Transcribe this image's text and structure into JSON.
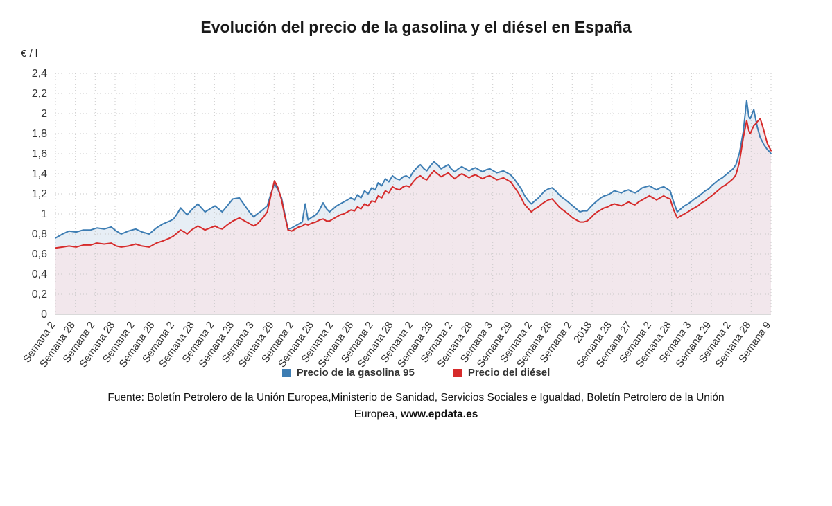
{
  "title": "Evolución del precio de la gasolina y el diésel en España",
  "footer": {
    "line1": "Fuente: Boletín Petrolero de la Unión Europea,Ministerio de Sanidad, Servicios Sociales e Igualdad, Boletín Petrolero de la Unión",
    "line2": "Europea, ",
    "link": "www.epdata.es"
  },
  "chart_data": {
    "type": "area",
    "title": "Evolución del precio de la gasolina y el diésel en España",
    "xlabel": "",
    "ylabel": "€ / l",
    "ylim": [
      0,
      2.4
    ],
    "grid": true,
    "legend_position": "bottom",
    "y_ticks": [
      "0",
      "0,2",
      "0,4",
      "0,6",
      "0,8",
      "1",
      "1,2",
      "1,4",
      "1,6",
      "1,8",
      "2",
      "2,2",
      "2,4"
    ],
    "y_tick_values": [
      0,
      0.2,
      0.4,
      0.6,
      0.8,
      1.0,
      1.2,
      1.4,
      1.6,
      1.8,
      2.0,
      2.2,
      2.4
    ],
    "x_tick_labels": [
      "Semana 2",
      "Semana 28",
      "Semana 2",
      "Semana 28",
      "Semana 2",
      "Semana 28",
      "Semana 2",
      "Semana 28",
      "Semana 2",
      "Semana 28",
      "Semana 3",
      "Semana 29",
      "Semana 2",
      "Semana 28",
      "Semana 2",
      "Semana 28",
      "Semana 2",
      "Semana 28",
      "Semana 2",
      "Semana 28",
      "Semana 2",
      "Semana 28",
      "Semana 3",
      "Semana 29",
      "Semana 2",
      "Semana 28",
      "Semana 2",
      "2018",
      "Semana 28",
      "Semana 27",
      "Semana 2",
      "Semana 28",
      "Semana 3",
      "Semana 29",
      "Semana 2",
      "Semana 28",
      "Semana 9"
    ],
    "x": [
      0.0,
      0.01,
      0.019,
      0.029,
      0.039,
      0.049,
      0.058,
      0.068,
      0.078,
      0.085,
      0.092,
      0.102,
      0.112,
      0.121,
      0.131,
      0.141,
      0.15,
      0.16,
      0.165,
      0.17,
      0.175,
      0.18,
      0.184,
      0.19,
      0.199,
      0.204,
      0.209,
      0.216,
      0.223,
      0.228,
      0.233,
      0.24,
      0.248,
      0.257,
      0.262,
      0.267,
      0.272,
      0.277,
      0.282,
      0.286,
      0.291,
      0.296,
      0.301,
      0.306,
      0.311,
      0.316,
      0.32,
      0.325,
      0.33,
      0.335,
      0.34,
      0.345,
      0.349,
      0.353,
      0.359,
      0.364,
      0.369,
      0.374,
      0.379,
      0.383,
      0.388,
      0.393,
      0.398,
      0.403,
      0.408,
      0.413,
      0.418,
      0.422,
      0.427,
      0.432,
      0.437,
      0.442,
      0.447,
      0.451,
      0.456,
      0.461,
      0.466,
      0.471,
      0.476,
      0.481,
      0.486,
      0.49,
      0.495,
      0.5,
      0.505,
      0.51,
      0.515,
      0.519,
      0.524,
      0.529,
      0.534,
      0.539,
      0.544,
      0.549,
      0.553,
      0.558,
      0.563,
      0.568,
      0.573,
      0.578,
      0.583,
      0.587,
      0.592,
      0.597,
      0.602,
      0.607,
      0.612,
      0.617,
      0.622,
      0.626,
      0.631,
      0.636,
      0.641,
      0.646,
      0.651,
      0.655,
      0.66,
      0.665,
      0.67,
      0.675,
      0.68,
      0.684,
      0.689,
      0.694,
      0.699,
      0.704,
      0.709,
      0.713,
      0.718,
      0.723,
      0.728,
      0.733,
      0.738,
      0.743,
      0.748,
      0.752,
      0.757,
      0.762,
      0.767,
      0.772,
      0.777,
      0.781,
      0.786,
      0.791,
      0.796,
      0.801,
      0.806,
      0.81,
      0.815,
      0.82,
      0.825,
      0.83,
      0.835,
      0.84,
      0.845,
      0.85,
      0.855,
      0.859,
      0.864,
      0.869,
      0.874,
      0.879,
      0.884,
      0.888,
      0.893,
      0.898,
      0.903,
      0.908,
      0.913,
      0.917,
      0.922,
      0.927,
      0.932,
      0.937,
      0.942,
      0.947,
      0.951,
      0.956,
      0.961,
      0.966,
      0.969,
      0.971,
      0.976,
      0.979,
      0.981,
      0.985,
      0.988,
      0.99,
      0.993,
      0.995,
      0.998,
      1.0
    ],
    "series": [
      {
        "id": "gasolina95",
        "name": "Precio de la gasolina 95",
        "color": "#3d7db3",
        "fill": "#e7eef5",
        "values": [
          0.76,
          0.8,
          0.83,
          0.82,
          0.84,
          0.84,
          0.86,
          0.85,
          0.87,
          0.83,
          0.8,
          0.83,
          0.85,
          0.82,
          0.8,
          0.86,
          0.9,
          0.93,
          0.95,
          1.0,
          1.06,
          1.02,
          0.99,
          1.04,
          1.1,
          1.06,
          1.02,
          1.05,
          1.08,
          1.05,
          1.02,
          1.08,
          1.15,
          1.16,
          1.11,
          1.06,
          1.01,
          0.97,
          1.0,
          1.02,
          1.05,
          1.08,
          1.2,
          1.3,
          1.24,
          1.16,
          1.02,
          0.85,
          0.86,
          0.88,
          0.9,
          0.92,
          1.1,
          0.94,
          0.97,
          0.99,
          1.04,
          1.11,
          1.05,
          1.02,
          1.05,
          1.08,
          1.1,
          1.12,
          1.14,
          1.16,
          1.14,
          1.19,
          1.16,
          1.23,
          1.2,
          1.26,
          1.24,
          1.31,
          1.28,
          1.35,
          1.32,
          1.38,
          1.35,
          1.34,
          1.37,
          1.38,
          1.36,
          1.42,
          1.46,
          1.49,
          1.45,
          1.43,
          1.48,
          1.52,
          1.49,
          1.45,
          1.47,
          1.49,
          1.45,
          1.42,
          1.45,
          1.47,
          1.45,
          1.43,
          1.45,
          1.46,
          1.44,
          1.42,
          1.44,
          1.45,
          1.43,
          1.41,
          1.42,
          1.43,
          1.41,
          1.39,
          1.35,
          1.3,
          1.25,
          1.19,
          1.14,
          1.1,
          1.13,
          1.16,
          1.2,
          1.23,
          1.25,
          1.26,
          1.23,
          1.19,
          1.16,
          1.14,
          1.11,
          1.08,
          1.05,
          1.02,
          1.03,
          1.03,
          1.07,
          1.1,
          1.13,
          1.16,
          1.18,
          1.19,
          1.21,
          1.23,
          1.22,
          1.21,
          1.23,
          1.24,
          1.22,
          1.21,
          1.23,
          1.26,
          1.27,
          1.28,
          1.26,
          1.24,
          1.26,
          1.27,
          1.25,
          1.23,
          1.12,
          1.02,
          1.05,
          1.08,
          1.1,
          1.12,
          1.15,
          1.17,
          1.2,
          1.23,
          1.25,
          1.28,
          1.31,
          1.34,
          1.36,
          1.39,
          1.42,
          1.45,
          1.49,
          1.61,
          1.81,
          2.13,
          1.97,
          1.95,
          2.04,
          1.93,
          1.86,
          1.76,
          1.72,
          1.69,
          1.66,
          1.64,
          1.62,
          1.6
        ]
      },
      {
        "id": "diesel",
        "name": "Precio del diésel",
        "color": "#d62b2b",
        "fill": "#f2e7ec",
        "values": [
          0.66,
          0.67,
          0.68,
          0.67,
          0.69,
          0.69,
          0.71,
          0.7,
          0.71,
          0.68,
          0.67,
          0.68,
          0.7,
          0.68,
          0.67,
          0.71,
          0.73,
          0.76,
          0.78,
          0.81,
          0.84,
          0.82,
          0.8,
          0.84,
          0.88,
          0.86,
          0.84,
          0.86,
          0.88,
          0.86,
          0.85,
          0.89,
          0.93,
          0.96,
          0.94,
          0.92,
          0.9,
          0.88,
          0.9,
          0.93,
          0.97,
          1.02,
          1.18,
          1.33,
          1.26,
          1.14,
          1.0,
          0.84,
          0.83,
          0.85,
          0.87,
          0.88,
          0.9,
          0.89,
          0.91,
          0.92,
          0.94,
          0.95,
          0.93,
          0.93,
          0.95,
          0.97,
          0.99,
          1.0,
          1.02,
          1.04,
          1.03,
          1.07,
          1.05,
          1.1,
          1.08,
          1.13,
          1.12,
          1.18,
          1.16,
          1.23,
          1.21,
          1.27,
          1.25,
          1.24,
          1.27,
          1.28,
          1.27,
          1.32,
          1.36,
          1.38,
          1.35,
          1.34,
          1.39,
          1.43,
          1.4,
          1.37,
          1.39,
          1.41,
          1.38,
          1.35,
          1.38,
          1.4,
          1.38,
          1.36,
          1.38,
          1.39,
          1.37,
          1.35,
          1.37,
          1.38,
          1.36,
          1.34,
          1.35,
          1.36,
          1.34,
          1.32,
          1.27,
          1.22,
          1.16,
          1.1,
          1.06,
          1.02,
          1.05,
          1.07,
          1.1,
          1.12,
          1.14,
          1.15,
          1.11,
          1.07,
          1.04,
          1.02,
          0.99,
          0.96,
          0.94,
          0.92,
          0.92,
          0.93,
          0.96,
          0.99,
          1.02,
          1.04,
          1.06,
          1.07,
          1.09,
          1.1,
          1.09,
          1.08,
          1.1,
          1.12,
          1.1,
          1.09,
          1.12,
          1.14,
          1.16,
          1.18,
          1.16,
          1.14,
          1.16,
          1.18,
          1.16,
          1.15,
          1.04,
          0.96,
          0.98,
          1.0,
          1.02,
          1.04,
          1.06,
          1.08,
          1.11,
          1.13,
          1.16,
          1.18,
          1.21,
          1.24,
          1.27,
          1.29,
          1.32,
          1.35,
          1.39,
          1.52,
          1.75,
          1.93,
          1.83,
          1.8,
          1.88,
          1.9,
          1.92,
          1.95,
          1.88,
          1.83,
          1.75,
          1.7,
          1.66,
          1.63
        ]
      }
    ]
  }
}
